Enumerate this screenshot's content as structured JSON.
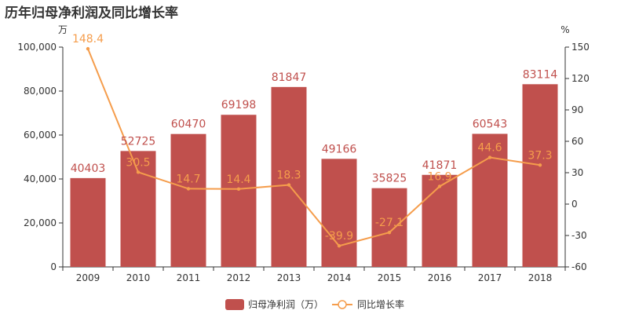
{
  "title": "历年归母净利润及同比增长率",
  "chart_data": {
    "type": "bar+line",
    "categories": [
      "2009",
      "2010",
      "2011",
      "2012",
      "2013",
      "2014",
      "2015",
      "2016",
      "2017",
      "2018"
    ],
    "series": [
      {
        "name": "归母净利润（万）",
        "type": "bar",
        "axis": "left",
        "color": "#c0504d",
        "label_color": "#c0504d",
        "values": [
          40403,
          52725,
          60470,
          69198,
          81847,
          49166,
          35825,
          41871,
          60543,
          83114
        ]
      },
      {
        "name": "同比增长率",
        "type": "line",
        "axis": "right",
        "color": "#f59d4c",
        "label_color": "#f59d4c",
        "values": [
          148.4,
          30.5,
          14.7,
          14.4,
          18.3,
          -39.9,
          -27.1,
          16.9,
          44.6,
          37.3
        ]
      }
    ],
    "left_axis": {
      "unit": "万",
      "min": 0,
      "max": 100000,
      "step": 20000
    },
    "right_axis": {
      "unit": "%",
      "min": -60,
      "max": 150,
      "step": 30
    },
    "grid": false,
    "legend_position": "bottom-center"
  }
}
